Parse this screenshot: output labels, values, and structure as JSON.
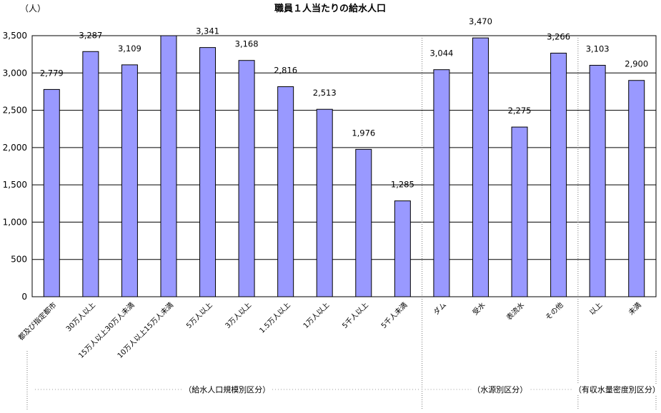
{
  "chart_data": {
    "type": "bar",
    "title": "職員１人当たりの給水人口",
    "unit_label": "（人）",
    "ylim": [
      0,
      3500
    ],
    "yticks": [
      0,
      500,
      1000,
      1500,
      2000,
      2500,
      3000,
      3500
    ],
    "ytick_labels": [
      "0",
      "500",
      "1,000",
      "1,500",
      "2,000",
      "2,500",
      "3,000",
      "3,500"
    ],
    "grid": true,
    "bar_color": "#9999ff",
    "categories": [
      "都及び指定都市",
      "30万人以上",
      "15万人以上30万人未満",
      "10万人以上15万人未満",
      "5万人以上",
      "3万人以上",
      "1.5万人以上",
      "1万人以上",
      "5千人以上",
      "5千人未満",
      "ダム",
      "受水",
      "表流水",
      "その他",
      "以上",
      "未満"
    ],
    "values": [
      2779,
      3287,
      3109,
      3500,
      3341,
      3168,
      2816,
      2513,
      1976,
      1285,
      3044,
      3470,
      2275,
      3266,
      3103,
      2900
    ],
    "value_labels": [
      "2,779",
      "3,287",
      "3,109",
      "",
      "3,341",
      "3,168",
      "2,816",
      "2,513",
      "1,976",
      "1,285",
      "3,044",
      "3,470",
      "2,275",
      "3,266",
      "3,103",
      "2,900"
    ],
    "groups": [
      {
        "label": "（給水人口規模別区分）",
        "start": 0,
        "end": 9
      },
      {
        "label": "（水源別区分）",
        "start": 10,
        "end": 13
      },
      {
        "label": "（有収水量密度別区分）",
        "start": 14,
        "end": 15
      }
    ]
  }
}
